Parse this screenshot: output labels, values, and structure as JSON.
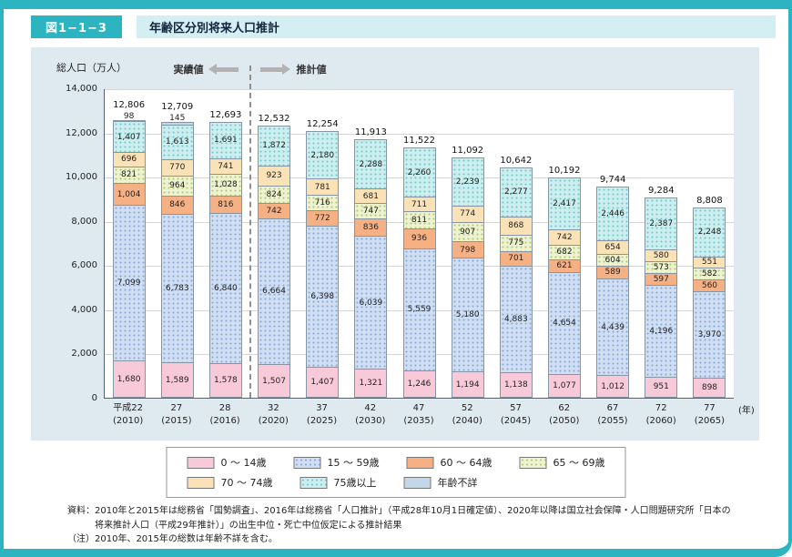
{
  "header": {
    "figure_label": "図1−1−3",
    "title": "年齢区分別将来人口推計"
  },
  "chart_data": {
    "type": "stacked-bar",
    "title": "年齢区分別将来人口推計",
    "ylabel": "総人口（万人）",
    "x_unit": "(年)",
    "ylim": [
      0,
      14000
    ],
    "yticks": [
      0,
      2000,
      4000,
      6000,
      8000,
      10000,
      12000,
      14000
    ],
    "grid": true,
    "legend_position": "bottom",
    "annotations": {
      "actual": "実績値",
      "projected": "推計値"
    },
    "divider_after": 3,
    "categories": [
      {
        "era": "平成22",
        "year": "(2010)"
      },
      {
        "era": "27",
        "year": "(2015)"
      },
      {
        "era": "28",
        "year": "(2016)"
      },
      {
        "era": "32",
        "year": "(2020)"
      },
      {
        "era": "37",
        "year": "(2025)"
      },
      {
        "era": "42",
        "year": "(2030)"
      },
      {
        "era": "47",
        "year": "(2035)"
      },
      {
        "era": "52",
        "year": "(2040)"
      },
      {
        "era": "57",
        "year": "(2045)"
      },
      {
        "era": "62",
        "year": "(2050)"
      },
      {
        "era": "67",
        "year": "(2055)"
      },
      {
        "era": "72",
        "year": "(2060)"
      },
      {
        "era": "77",
        "year": "(2065)"
      }
    ],
    "totals": [
      12806,
      12709,
      12693,
      12532,
      12254,
      11913,
      11522,
      11092,
      10642,
      10192,
      9744,
      9284,
      8808
    ],
    "series": [
      {
        "name": "0 ～ 14歳",
        "color": "#f8c9d9",
        "pattern": "plain",
        "values": [
          1680,
          1589,
          1578,
          1507,
          1407,
          1321,
          1246,
          1194,
          1138,
          1077,
          1012,
          951,
          898
        ]
      },
      {
        "name": "15 ～ 59歳",
        "color": "#cfdef2",
        "pattern": "dots",
        "dot_color": "#8aa8d8",
        "values": [
          7099,
          6783,
          6840,
          6664,
          6398,
          6039,
          5559,
          5180,
          4883,
          4654,
          4439,
          4196,
          3970
        ]
      },
      {
        "name": "60 ～ 64歳",
        "color": "#f5b184",
        "pattern": "plain",
        "values": [
          1004,
          846,
          816,
          742,
          772,
          836,
          936,
          798,
          701,
          621,
          589,
          597,
          560
        ]
      },
      {
        "name": "65 ～ 69歳",
        "color": "#edf2cf",
        "pattern": "dots",
        "dot_color": "#b5c77a",
        "values": [
          821,
          964,
          1028,
          824,
          716,
          747,
          811,
          907,
          775,
          682,
          604,
          573,
          582
        ]
      },
      {
        "name": "70 ～ 74歳",
        "color": "#fbe2b6",
        "pattern": "plain",
        "values": [
          696,
          770,
          741,
          923,
          781,
          681,
          711,
          774,
          868,
          742,
          654,
          580,
          551
        ]
      },
      {
        "name": "75歳以上",
        "color": "#cdeeee",
        "pattern": "dots",
        "dot_color": "#72c8cc",
        "values": [
          1407,
          1613,
          1691,
          1872,
          2180,
          2288,
          2260,
          2239,
          2277,
          2417,
          2446,
          2387,
          2248
        ]
      },
      {
        "name": "年齢不詳",
        "color": "#c4d7ea",
        "pattern": "plain",
        "values": [
          98,
          145,
          0,
          0,
          0,
          0,
          0,
          0,
          0,
          0,
          0,
          0,
          0
        ]
      }
    ]
  },
  "footnotes": {
    "source": "資料：2010年と2015年は総務省「国勢調査」、2016年は総務省「人口推計」（平成28年10月1日確定値）、2020年以降は国立社会保障・人口問題研究所「日本の将来推計人口（平成29年推計）」の出生中位・死亡中位仮定による推計結果",
    "note": "（注）2010年、2015年の総数は年齢不詳を含む。"
  },
  "colors": {
    "accent_teal": "#2db4c1",
    "title_strip_bg": "#d4eff4",
    "panel_bg": "#dfe9f0",
    "arrow_gray": "#b2b2b2"
  }
}
